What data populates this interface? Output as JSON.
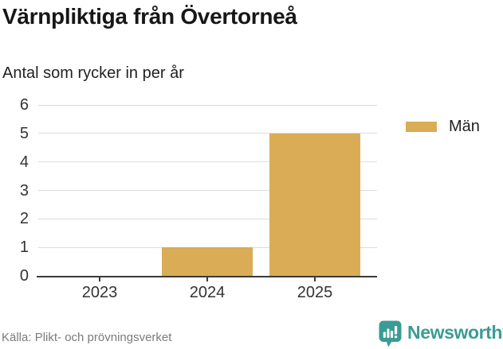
{
  "header": {
    "title": "Värnpliktiga från Övertorneå",
    "subtitle": "Antal som rycker in per år"
  },
  "chart_data": {
    "type": "bar",
    "title": "Värnpliktiga från Övertorneå",
    "subtitle": "Antal som rycker in per år",
    "categories": [
      "2023",
      "2024",
      "2025"
    ],
    "series": [
      {
        "name": "Män",
        "color": "#D9AC55",
        "values": [
          0,
          1,
          5
        ]
      }
    ],
    "xlabel": "",
    "ylabel": "",
    "ylim": [
      0,
      6
    ],
    "yticks": [
      0,
      1,
      2,
      3,
      4,
      5,
      6
    ],
    "grid": true,
    "legend_position": "right"
  },
  "legend": {
    "items": [
      {
        "label": "Män",
        "color": "#D9AC55"
      }
    ]
  },
  "footer": {
    "source": "Källa: Plikt- och prövningsverket",
    "brand": "Newsworthy"
  },
  "colors": {
    "bar": "#D9AC55",
    "brand_teal": "#3A9C94",
    "gridline": "#DDDDDD",
    "axis": "#3A3A3A",
    "text_dark": "#171717",
    "text_muted": "#7B7B7B"
  }
}
